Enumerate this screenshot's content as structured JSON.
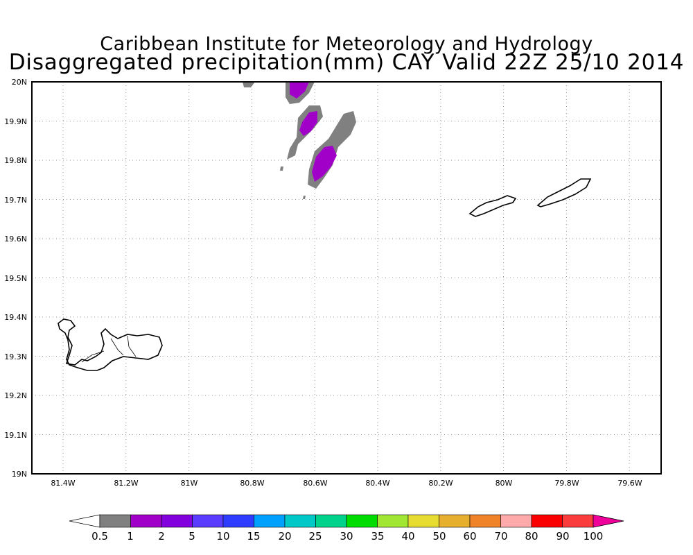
{
  "header": {
    "institute": "Caribbean Institute for Meteorology and Hydrology",
    "product": "Disaggregated precipitation(mm) CAY Valid 22Z 25/10 2014"
  },
  "map": {
    "lon_ticks": [
      "81.4W",
      "81.2W",
      "81W",
      "80.8W",
      "80.6W",
      "80.4W",
      "80.2W",
      "80W",
      "79.8W",
      "79.6W"
    ],
    "lat_ticks": [
      "20N",
      "19.9N",
      "19.8N",
      "19.7N",
      "19.6N",
      "19.5N",
      "19.4N",
      "19.3N",
      "19.2N",
      "19.1N",
      "19N"
    ],
    "islands": [
      "Grand Cayman",
      "Little Cayman",
      "Cayman Brac"
    ],
    "grid": true
  },
  "colorbar": {
    "labels": [
      "0.5",
      "1",
      "2",
      "5",
      "10",
      "15",
      "20",
      "25",
      "30",
      "35",
      "40",
      "50",
      "60",
      "70",
      "80",
      "90",
      "100"
    ],
    "colors": [
      "#ffffff",
      "#808080",
      "#a000c8",
      "#8200dc",
      "#5a3cff",
      "#2e3cff",
      "#00a0ff",
      "#00c8c8",
      "#00d28c",
      "#00dc00",
      "#a0e632",
      "#e6dc32",
      "#e6af2d",
      "#f08228",
      "#ffaaaa",
      "#fa0000",
      "#fa3c3c",
      "#f0009a"
    ]
  },
  "precip_colors": {
    "low": "#808080",
    "mid": "#a000c8"
  }
}
